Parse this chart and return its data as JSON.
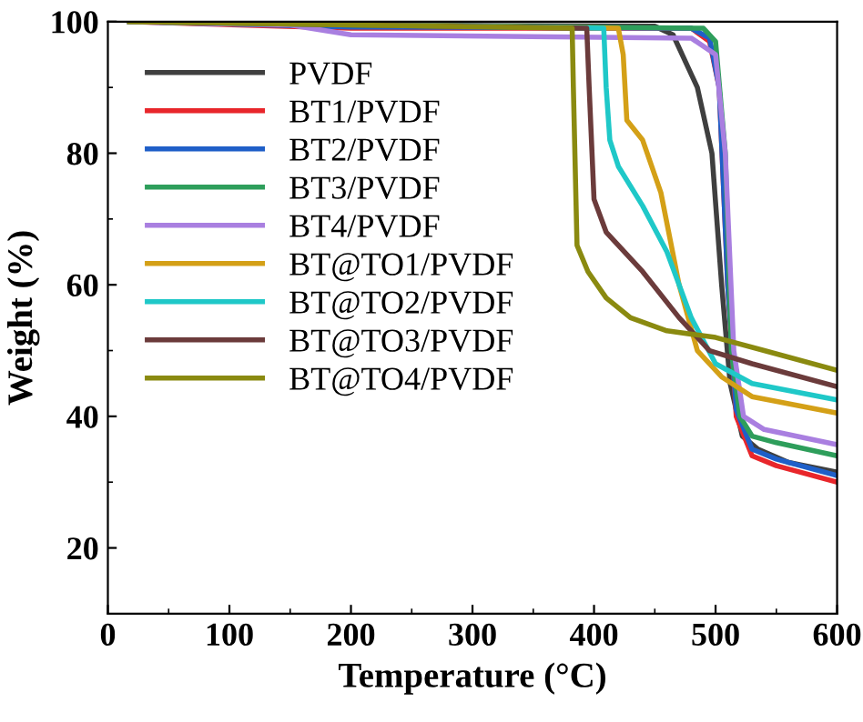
{
  "chart_data": {
    "type": "line",
    "xlabel": "Temperature (°C)",
    "ylabel": "Weight (%)",
    "xlim": [
      0,
      600
    ],
    "xticks": [
      0,
      100,
      200,
      300,
      400,
      500,
      600
    ],
    "ylim": [
      10,
      100
    ],
    "yticks": [
      20,
      40,
      60,
      80,
      100
    ],
    "grid": false,
    "legend": "top left",
    "marker": "none",
    "line_style": "solid",
    "series": [
      {
        "name": "PVDF",
        "color": "#3f3f3f",
        "x": [
          18,
          200,
          450,
          465,
          485,
          497,
          505,
          512,
          522,
          535,
          560,
          600
        ],
        "values": [
          100,
          99.5,
          99.3,
          98,
          90,
          80,
          60,
          45,
          37,
          35,
          33,
          31.5
        ]
      },
      {
        "name": "BT1/PVDF",
        "color": "#e8262b",
        "x": [
          18,
          200,
          480,
          495,
          503,
          510,
          517,
          530,
          550,
          600
        ],
        "values": [
          100,
          99,
          99,
          97,
          90,
          60,
          40,
          34,
          32.5,
          30
        ]
      },
      {
        "name": "BT2/PVDF",
        "color": "#1f5fc8",
        "x": [
          18,
          200,
          480,
          495,
          503,
          510,
          517,
          530,
          550,
          600
        ],
        "values": [
          100,
          99.2,
          99,
          97.5,
          90,
          60,
          41,
          35,
          33.5,
          31
        ]
      },
      {
        "name": "BT3/PVDF",
        "color": "#2e9e5b",
        "x": [
          18,
          200,
          490,
          500,
          508,
          513,
          520,
          530,
          550,
          600
        ],
        "values": [
          100,
          99.5,
          99,
          97,
          80,
          50,
          40,
          37,
          36,
          34
        ]
      },
      {
        "name": "BT4/PVDF",
        "color": "#a97fe0",
        "x": [
          18,
          150,
          200,
          480,
          500,
          508,
          515,
          523,
          540,
          600
        ],
        "values": [
          100,
          99.5,
          98,
          97.5,
          95,
          80,
          50,
          40,
          38,
          35.7
        ]
      },
      {
        "name": "BT@TO1/PVDF",
        "color": "#d4a017",
        "x": [
          18,
          420,
          424,
          427,
          440,
          455,
          470,
          485,
          505,
          530,
          600
        ],
        "values": [
          100,
          99,
          95,
          85,
          82,
          74,
          60,
          50,
          46,
          43,
          40.5
        ]
      },
      {
        "name": "BT@TO2/PVDF",
        "color": "#1fc8c8",
        "x": [
          18,
          408,
          410,
          413,
          420,
          440,
          460,
          480,
          500,
          530,
          600
        ],
        "values": [
          100,
          99,
          90,
          82,
          78,
          72,
          65,
          55,
          48,
          45,
          42.5
        ]
      },
      {
        "name": "BT@TO3/PVDF",
        "color": "#6b3b3b",
        "x": [
          18,
          394,
          396,
          400,
          410,
          440,
          470,
          495,
          530,
          600
        ],
        "values": [
          100,
          99,
          90,
          73,
          68,
          62,
          55,
          50,
          48,
          44.5
        ]
      },
      {
        "name": "BT@TO4/PVDF",
        "color": "#8a8a10",
        "x": [
          18,
          382,
          383,
          386,
          395,
          410,
          430,
          460,
          500,
          540,
          600
        ],
        "values": [
          100,
          99,
          90,
          66,
          62,
          58,
          55,
          53,
          52,
          50,
          47
        ]
      }
    ]
  }
}
